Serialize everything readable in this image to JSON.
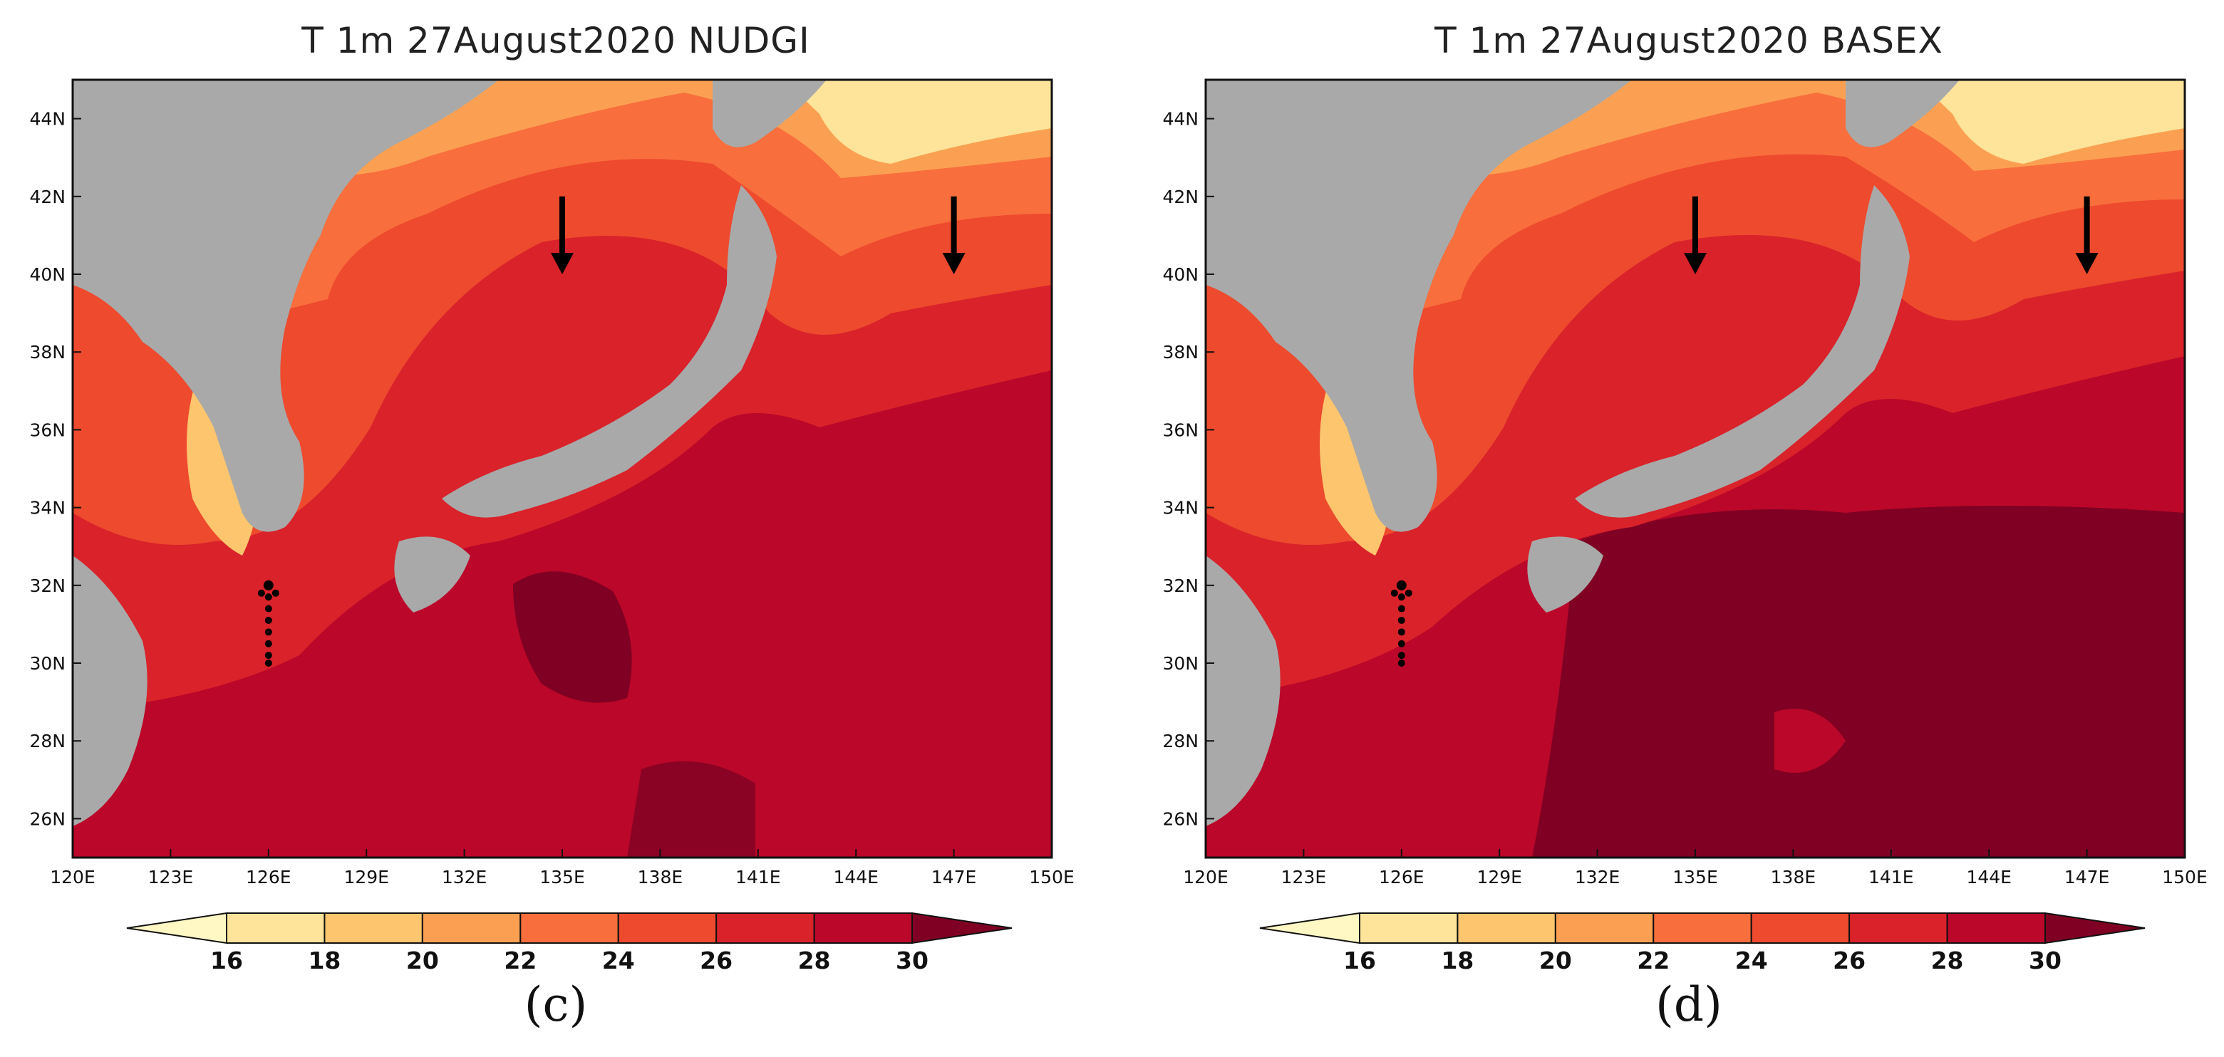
{
  "panels": [
    {
      "title": "T 1m 27August2020 NUDGI",
      "label": "(c)"
    },
    {
      "title": "T 1m 27August2020 BASEX",
      "label": "(d)"
    }
  ],
  "lat_ticks": [
    "44N",
    "42N",
    "40N",
    "38N",
    "36N",
    "34N",
    "32N",
    "30N",
    "28N",
    "26N"
  ],
  "lon_ticks": [
    "120E",
    "123E",
    "126E",
    "129E",
    "132E",
    "135E",
    "138E",
    "141E",
    "144E",
    "147E",
    "150E"
  ],
  "colorbar": {
    "labels": [
      "16",
      "18",
      "20",
      "22",
      "24",
      "26",
      "28",
      "30"
    ],
    "colors": [
      "#fff7c4",
      "#fde49a",
      "#fcc56e",
      "#fba052",
      "#f86e3c",
      "#ee4a2e",
      "#d9222a",
      "#bb0729",
      "#7f0022"
    ]
  },
  "land_color": "#a9a9a9",
  "arrows_lon": [
    135,
    147
  ],
  "station_dots_lat": [
    32.0,
    31.7,
    31.4,
    31.1,
    30.8,
    30.5,
    30.2,
    30.0
  ],
  "station_lon": 126
}
